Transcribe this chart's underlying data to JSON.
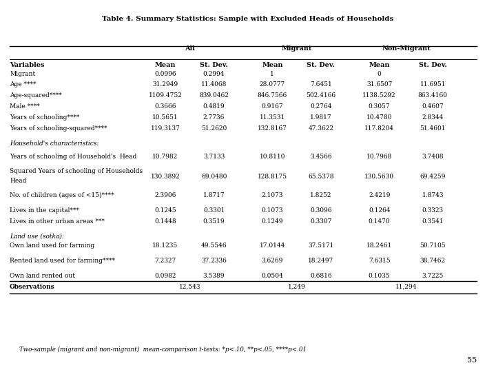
{
  "title": "Table 4. Summary Statistics: Sample with Excluded Heads of Households",
  "col_headers": [
    "Variables",
    "All\nMean",
    "All\nSt. Dev.",
    "Migrant\nMean",
    "Migrant\nSt. Dev.",
    "Non-Migrant\nMean",
    "Non-Migrant\nSt. Dev."
  ],
  "group_headers": [
    "All",
    "Migrant",
    "Non-Migrant"
  ],
  "rows": [
    [
      "Migrant",
      "0.0996",
      "0.2994",
      "1",
      "",
      "0",
      ""
    ],
    [
      "Age ****",
      "31.2949",
      "11.4068",
      "28.0777",
      "7.6451",
      "31.6507",
      "11.6951"
    ],
    [
      "Age-squared****",
      "1109.4752",
      "839.0462",
      "846.7566",
      "502.4166",
      "1138.5292",
      "863.4160"
    ],
    [
      "Male ****",
      "0.3666",
      "0.4819",
      "0.9167",
      "0.2764",
      "0.3057",
      "0.4607"
    ],
    [
      "Years of schooling****",
      "10.5651",
      "2.7736",
      "11.3531",
      "1.9817",
      "10.4780",
      "2.8344"
    ],
    [
      "Years of schooling-squared****",
      "119.3137",
      "51.2620",
      "132.8167",
      "47.3622",
      "117.8204",
      "51.4601"
    ],
    [
      "",
      "",
      "",
      "",
      "",
      "",
      ""
    ],
    [
      "Household's characteristics:",
      "",
      "",
      "",
      "",
      "",
      ""
    ],
    [
      "",
      "",
      "",
      "",
      "",
      "",
      ""
    ],
    [
      "Years of schooling of Household's  Head",
      "10.7982",
      "3.7133",
      "10.8110",
      "3.4566",
      "10.7968",
      "3.7408"
    ],
    [
      "",
      "",
      "",
      "",
      "",
      "",
      ""
    ],
    [
      "Squared Years of schooling of Households\nHead",
      "130.3892",
      "69.0480",
      "128.8175",
      "65.5378",
      "130.5630",
      "69.4259"
    ],
    [
      "",
      "",
      "",
      "",
      "",
      "",
      ""
    ],
    [
      "No. of children (ages of <15)****",
      "2.3906",
      "1.8717",
      "2.1073",
      "1.8252",
      "2.4219",
      "1.8743"
    ],
    [
      "",
      "",
      "",
      "",
      "",
      "",
      ""
    ],
    [
      "Lives in the capital***",
      "0.1245",
      "0.3301",
      "0.1073",
      "0.3096",
      "0.1264",
      "0.3323"
    ],
    [
      "Lives in other urban areas ***",
      "0.1448",
      "0.3519",
      "0.1249",
      "0.3307",
      "0.1470",
      "0.3541"
    ],
    [
      "",
      "",
      "",
      "",
      "",
      "",
      ""
    ],
    [
      "Land use (sotka):",
      "",
      "",
      "",
      "",
      "",
      ""
    ],
    [
      "Own land used for farming",
      "18.1235",
      "49.5546",
      "17.0144",
      "37.5171",
      "18.2461",
      "50.7105"
    ],
    [
      "",
      "",
      "",
      "",
      "",
      "",
      ""
    ],
    [
      "Rented land used for farming****",
      "7.2327",
      "37.2336",
      "3.6269",
      "18.2497",
      "7.6315",
      "38.7462"
    ],
    [
      "",
      "",
      "",
      "",
      "",
      "",
      ""
    ],
    [
      "Own land rented out",
      "0.0982",
      "3.5389",
      "0.0504",
      "0.6816",
      "0.1035",
      "3.7225"
    ],
    [
      "Observations",
      "12,543",
      "",
      "1,249",
      "",
      "11,294",
      ""
    ]
  ],
  "footer": "Two-sample (migrant and non-migrant)  mean-comparison t-tests: *p<.10, **p<.05, ****p<.01",
  "page_number": "55",
  "background_color": "#ffffff",
  "text_color": "#000000"
}
